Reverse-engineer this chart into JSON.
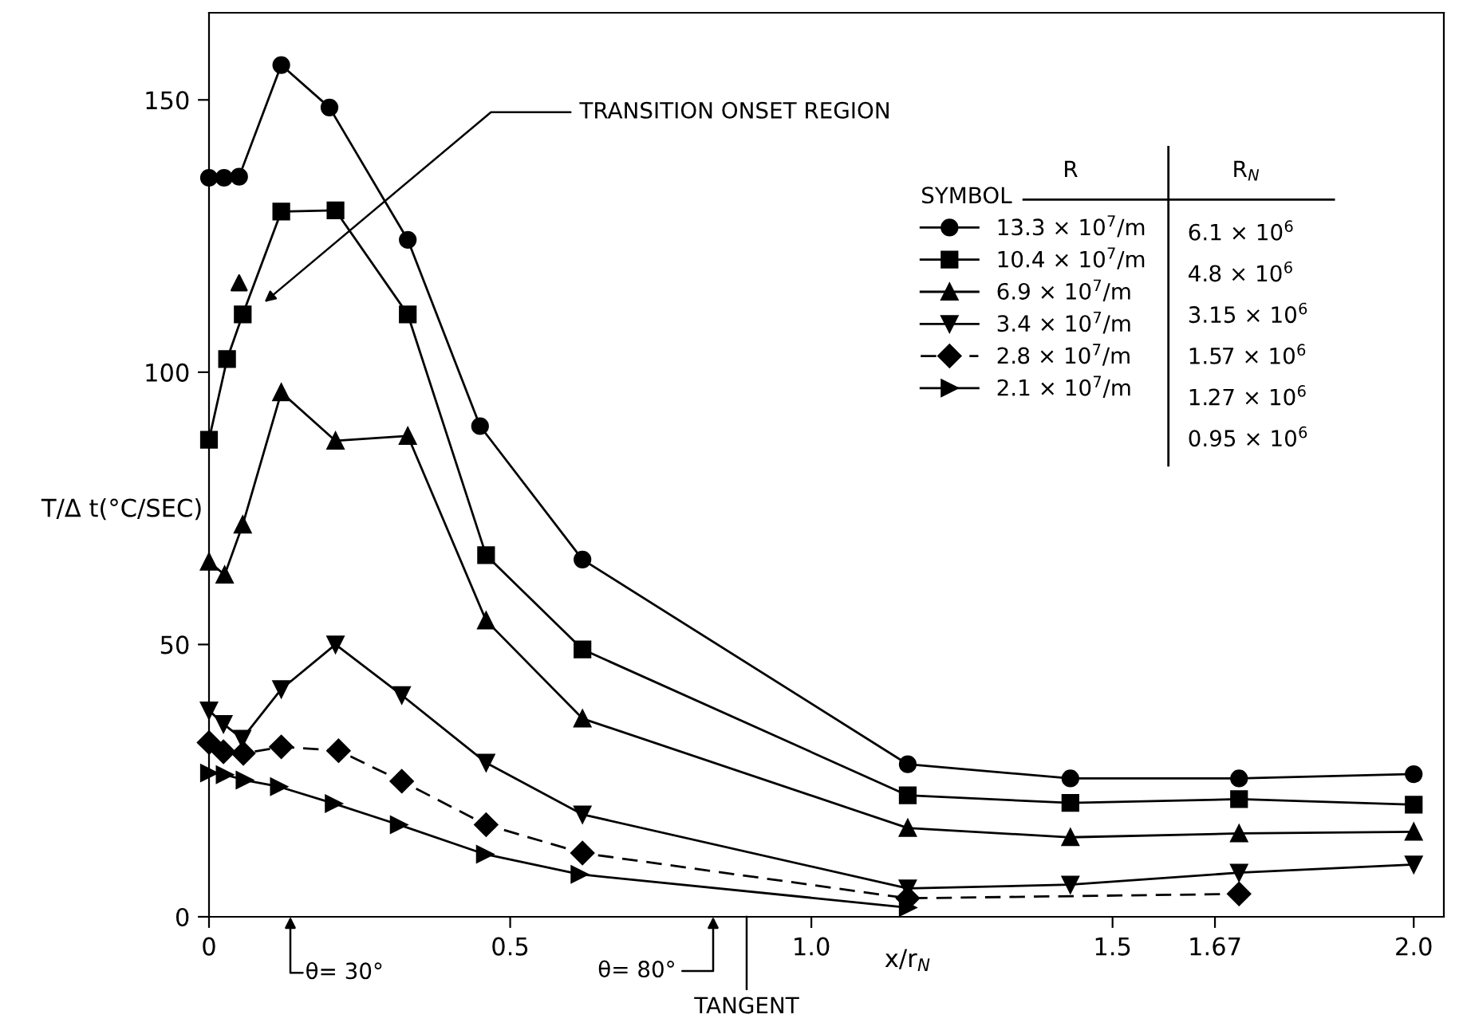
{
  "chart_data": {
    "type": "line",
    "xlabel": "x/r$_{N}$",
    "ylabel": "T/Δ t(°C/SEC)",
    "legend_title": "SYMBOL",
    "legend": "top right",
    "xlim": [
      0,
      2.05
    ],
    "ylim": [
      0,
      166
    ],
    "xticks": [
      0,
      0.5,
      {
        "value": 1.0,
        "label": "1.0"
      },
      {
        "value": 1.5,
        "label": "1.5"
      },
      1.67,
      {
        "value": 2.0,
        "label": "2.0"
      }
    ],
    "yticks": [
      0,
      50,
      100,
      150
    ],
    "series": [
      {
        "name": "13.3 × 10$^{7}$/m",
        "color": "#000000",
        "marker": "circle",
        "line_style": "solid",
        "x": [
          0,
          0.025,
          0.05,
          0.12,
          0.2,
          0.33,
          0.45,
          0.62,
          1.16,
          1.43,
          1.71,
          2.0
        ],
        "values": [
          135.7,
          135.7,
          135.9,
          156.4,
          148.6,
          124.3,
          90.1,
          65.6,
          28.0,
          25.4,
          25.4,
          26.2
        ]
      },
      {
        "name": "10.4 × 10$^{7}$/m",
        "color": "#000000",
        "marker": "square",
        "line_style": "solid",
        "x": [
          0,
          0.03,
          0.056,
          0.12,
          0.21,
          0.33,
          0.46,
          0.62,
          1.16,
          1.43,
          1.71,
          2.0
        ],
        "values": [
          87.6,
          102.4,
          110.6,
          129.5,
          129.7,
          110.6,
          66.4,
          49.1,
          22.3,
          20.9,
          21.6,
          20.6
        ]
      },
      {
        "name": "6.9 × 10$^{7}$/m",
        "color": "#000000",
        "marker": "triangle",
        "line_style": "solid",
        "x": [
          0,
          0.026,
          0.056,
          0.12,
          0.21,
          0.33,
          0.46,
          0.62,
          1.16,
          1.43,
          1.71,
          2.0
        ],
        "values": [
          65.2,
          62.8,
          72.0,
          96.3,
          87.4,
          88.3,
          54.4,
          36.4,
          16.3,
          14.6,
          15.3,
          15.6
        ]
      },
      {
        "name": "3.4 × 10$^{7}$/m",
        "color": "#000000",
        "marker": "triangle_down",
        "line_style": "solid",
        "x": [
          0,
          0.024,
          0.055,
          0.12,
          0.21,
          0.32,
          0.46,
          0.62,
          1.16,
          1.43,
          1.71,
          2.0
        ],
        "values": [
          37.9,
          35.4,
          32.7,
          41.8,
          50.0,
          40.7,
          28.3,
          18.8,
          5.2,
          5.9,
          8.1,
          9.6
        ]
      },
      {
        "name": "2.8 × 10$^{7}$/m",
        "color": "#000000",
        "marker": "diamond",
        "line_style": "dashed",
        "x": [
          0,
          0.024,
          0.057,
          0.12,
          0.215,
          0.32,
          0.46,
          0.62,
          1.16,
          1.71
        ],
        "values": [
          32.0,
          30.3,
          30.0,
          31.2,
          30.5,
          24.9,
          16.9,
          11.7,
          3.4,
          4.2
        ]
      },
      {
        "name": "2.1 × 10$^{7}$/m",
        "color": "#000000",
        "marker": "triangle_right",
        "line_style": "solid",
        "x": [
          0,
          0.026,
          0.059,
          0.116,
          0.207,
          0.315,
          0.458,
          0.615,
          1.16
        ],
        "values": [
          26.4,
          26.1,
          25.1,
          23.9,
          20.8,
          16.9,
          11.5,
          7.8,
          1.7
        ]
      },
      {
        "type": "scatter",
        "color": "#000000",
        "marker": "triangle",
        "x": [
          0.05
        ],
        "values": [
          116.4
        ]
      }
    ],
    "annotations": [
      "R",
      "R$_{N}$",
      "6.1 × 10$^{6}$",
      "4.8 × 10$^{6}$",
      "3.15 × 10$^{6}$",
      "1.57 × 10$^{6}$",
      "1.27 × 10$^{6}$",
      "0.95 × 10$^{6}$",
      "TRANSITION ONSET REGION",
      "θ= 30°",
      "θ= 80°",
      "TANGENT"
    ]
  }
}
